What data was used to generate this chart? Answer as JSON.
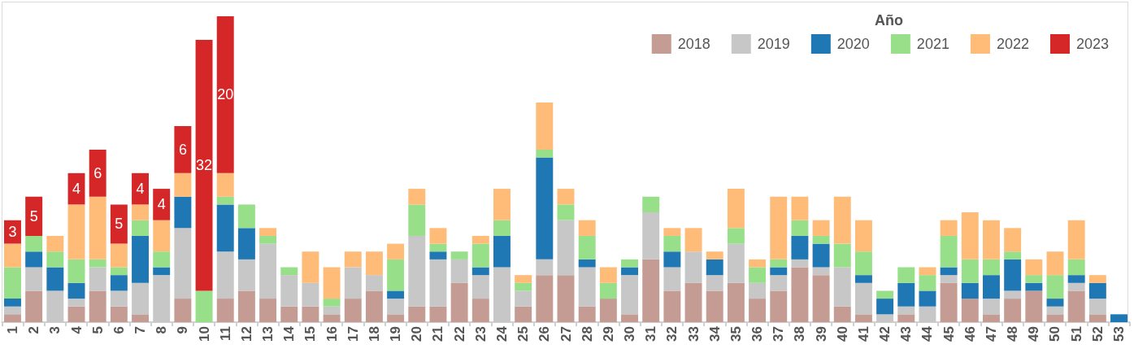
{
  "chart_data": {
    "type": "bar",
    "stacked": true,
    "legend_title": "Año",
    "legend": "top right",
    "tick_labels": "x",
    "categories": [
      "1",
      "2",
      "3",
      "4",
      "5",
      "6",
      "7",
      "8",
      "9",
      "10",
      "11",
      "12",
      "13",
      "14",
      "15",
      "16",
      "17",
      "18",
      "19",
      "20",
      "21",
      "22",
      "23",
      "24",
      "25",
      "26",
      "27",
      "28",
      "29",
      "30",
      "31",
      "32",
      "33",
      "34",
      "35",
      "36",
      "37",
      "38",
      "39",
      "40",
      "41",
      "42",
      "43",
      "44",
      "45",
      "46",
      "47",
      "48",
      "49",
      "50",
      "51",
      "52",
      "53"
    ],
    "series": [
      {
        "name": "2018",
        "color": "#c49c94",
        "values": [
          1,
          4,
          null,
          2,
          4,
          2,
          1,
          null,
          3,
          null,
          3,
          4,
          3,
          2,
          2,
          1,
          3,
          4,
          1,
          2,
          2,
          5,
          3,
          null,
          2,
          6,
          6,
          2,
          3,
          1,
          8,
          4,
          5,
          4,
          5,
          3,
          4,
          7,
          6,
          2,
          1,
          null,
          1,
          null,
          5,
          3,
          1,
          3,
          4,
          1,
          4,
          1,
          null
        ]
      },
      {
        "name": "2019",
        "color": "#c7c7c7",
        "values": [
          1,
          3,
          4,
          1,
          3,
          2,
          4,
          6,
          9,
          null,
          6,
          4,
          7,
          4,
          3,
          1,
          4,
          2,
          2,
          9,
          6,
          3,
          3,
          7,
          2,
          2,
          7,
          5,
          null,
          5,
          6,
          3,
          4,
          2,
          5,
          2,
          2,
          1,
          1,
          5,
          4,
          1,
          1,
          2,
          1,
          null,
          2,
          1,
          null,
          1,
          1,
          2,
          null
        ]
      },
      {
        "name": "2020",
        "color": "#1f77b4",
        "values": [
          1,
          2,
          3,
          2,
          null,
          2,
          6,
          1,
          4,
          null,
          6,
          4,
          null,
          null,
          null,
          null,
          null,
          null,
          1,
          null,
          1,
          null,
          1,
          4,
          null,
          13,
          null,
          1,
          null,
          1,
          null,
          2,
          null,
          2,
          null,
          null,
          1,
          3,
          3,
          null,
          1,
          2,
          3,
          2,
          1,
          2,
          3,
          4,
          1,
          1,
          1,
          2,
          1
        ]
      },
      {
        "name": "2021",
        "color": "#98df8a",
        "values": [
          4,
          2,
          2,
          3,
          1,
          1,
          2,
          2,
          null,
          4,
          1,
          3,
          1,
          1,
          null,
          1,
          null,
          null,
          4,
          4,
          1,
          1,
          3,
          2,
          1,
          1,
          2,
          3,
          2,
          1,
          2,
          2,
          null,
          null,
          2,
          2,
          1,
          2,
          1,
          3,
          3,
          1,
          2,
          2,
          4,
          3,
          2,
          1,
          1,
          3,
          2,
          null,
          null
        ]
      },
      {
        "name": "2022",
        "color": "#ffbb78",
        "values": [
          3,
          null,
          2,
          7,
          8,
          3,
          2,
          4,
          3,
          null,
          3,
          null,
          1,
          null,
          4,
          4,
          2,
          3,
          2,
          2,
          2,
          null,
          1,
          4,
          1,
          6,
          2,
          2,
          2,
          null,
          null,
          1,
          3,
          1,
          5,
          1,
          8,
          3,
          2,
          6,
          4,
          null,
          null,
          1,
          2,
          6,
          5,
          3,
          2,
          3,
          5,
          1,
          null
        ]
      },
      {
        "name": "2023",
        "color": "#d62728",
        "values": [
          3,
          5,
          null,
          4,
          6,
          5,
          4,
          4,
          6,
          32,
          20,
          null,
          null,
          null,
          null,
          null,
          null,
          null,
          null,
          null,
          null,
          null,
          null,
          null,
          null,
          null,
          null,
          null,
          null,
          null,
          null,
          null,
          null,
          null,
          null,
          null,
          null,
          null,
          null,
          null,
          null,
          null,
          null,
          null,
          null,
          null,
          null,
          null,
          null,
          null,
          null,
          null,
          null
        ],
        "value_labels": [
          "3",
          "5",
          null,
          "4",
          "6",
          "5",
          "4",
          "4",
          "6",
          "32",
          "20",
          null,
          null,
          null,
          null,
          null,
          null,
          null,
          null,
          null,
          null,
          null,
          null,
          null,
          null,
          null,
          null,
          null,
          null,
          null,
          null,
          null,
          null,
          null,
          null,
          null,
          null,
          null,
          null,
          null,
          null,
          null,
          null,
          null,
          null,
          null,
          null,
          null,
          null,
          null,
          null,
          null,
          null
        ]
      }
    ]
  }
}
